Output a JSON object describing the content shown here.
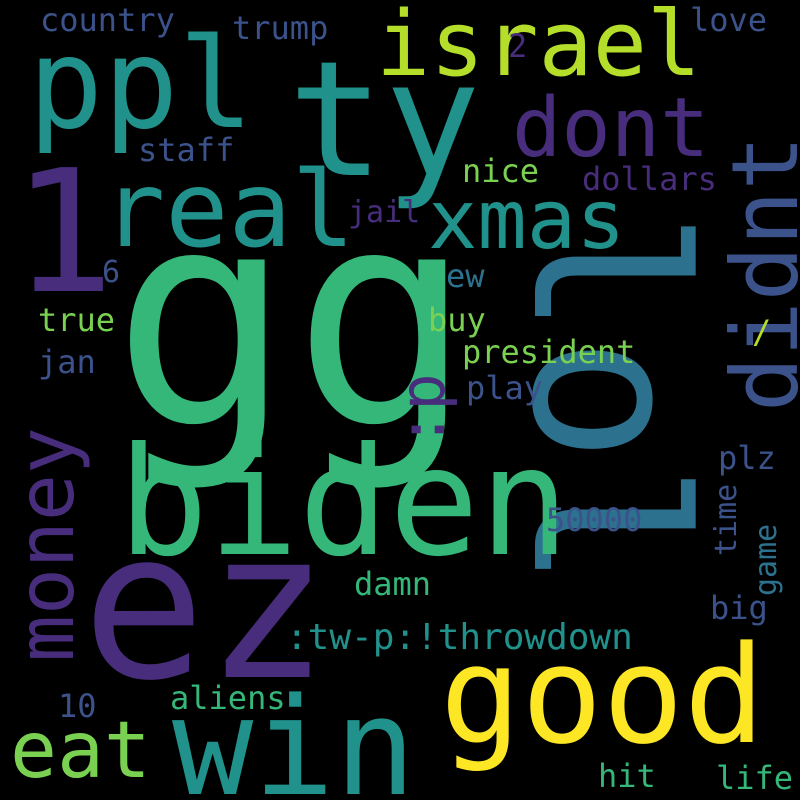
{
  "colors": {
    "background": "#000000",
    "yellow": "#fde725",
    "lightgreen": "#7ad151",
    "green": "#35b779",
    "teal": "#21918c",
    "blue": "#2c728e",
    "indigo": "#3b528b",
    "purple": "#472d7b",
    "darkpurple": "#440154"
  },
  "words": {
    "gg": "gg",
    "lol": "lol",
    "ez": "ez",
    "ty": "ty",
    "ppl": "ppl",
    "one": "1",
    "biden": "biden",
    "win": "win",
    "good": "good",
    "real": "real",
    "israel": "israel",
    "didnt": "didnt",
    "dont": "dont",
    "xmas": "xmas",
    "money": "money",
    "eat": "eat",
    "p_emoticon": ":p",
    "throwdown": ":tw-p:!throwdown",
    "country": "country",
    "trump": "trump",
    "love": "love",
    "two": "2",
    "staff": "staff",
    "nice": "nice",
    "dollars": "dollars",
    "jail": "jail",
    "six": "6",
    "ew": "ew",
    "true": "true",
    "buy": "buy",
    "slash": "/",
    "president": "president",
    "jan": "jan",
    "play": "play",
    "plz": "plz",
    "time": "time",
    "game": "game",
    "n50000": "50000",
    "damn": "damn",
    "big": "big",
    "ten": "10",
    "aliens": "aliens",
    "hit": "hit",
    "life": "life"
  }
}
